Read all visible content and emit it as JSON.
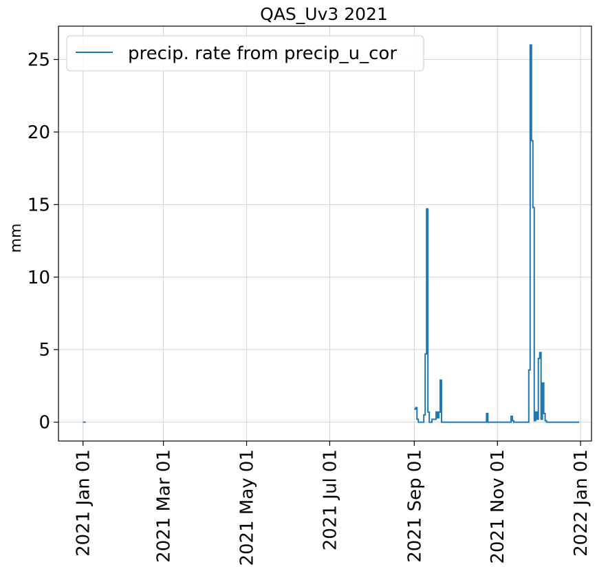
{
  "chart_data": {
    "type": "line",
    "title": "QAS_Uv3 2021",
    "xlabel": "",
    "ylabel": "mm",
    "x_axis": "date",
    "xlim": [
      "2020-12-14",
      "2022-01-09"
    ],
    "ylim": [
      -1.3,
      27.3
    ],
    "grid": true,
    "legend_placement": "top-left",
    "colors": {
      "series": "#1f77b4",
      "grid": "#d3d3d3",
      "axes": "#000000"
    },
    "x_ticks": [
      {
        "date": "2021-01-01",
        "label": "2021 Jan 01"
      },
      {
        "date": "2021-03-01",
        "label": "2021 Mar 01"
      },
      {
        "date": "2021-05-01",
        "label": "2021 May 01"
      },
      {
        "date": "2021-07-01",
        "label": "2021 Jul 01"
      },
      {
        "date": "2021-09-01",
        "label": "2021 Sep 01"
      },
      {
        "date": "2021-11-01",
        "label": "2021 Nov 01"
      },
      {
        "date": "2022-01-01",
        "label": "2022 Jan 01"
      }
    ],
    "y_ticks": [
      0,
      5,
      10,
      15,
      20,
      25
    ],
    "series": [
      {
        "name": "precip. rate from precip_u_cor",
        "step": "post",
        "segments": [
          {
            "x": [
              "2021-01-01",
              "2021-01-03"
            ],
            "y": [
              0,
              0
            ]
          },
          {
            "x": [
              "2021-09-01",
              "2021-09-02",
              "2021-09-03",
              "2021-09-04",
              "2021-09-08",
              "2021-09-09",
              "2021-09-10",
              "2021-09-11",
              "2021-09-12",
              "2021-09-14",
              "2021-09-17",
              "2021-09-18",
              "2021-09-19",
              "2021-09-20",
              "2021-09-21",
              "2021-09-22",
              "2021-10-24",
              "2021-10-25",
              "2021-11-11",
              "2021-11-12",
              "2021-11-13",
              "2021-11-24",
              "2021-11-25",
              "2021-11-26",
              "2021-11-27",
              "2021-11-28",
              "2021-11-29",
              "2021-11-30",
              "2021-12-01",
              "2021-12-02",
              "2021-12-03",
              "2021-12-04",
              "2021-12-05",
              "2021-12-06",
              "2021-12-07",
              "2021-12-31"
            ],
            "y": [
              0.9,
              1.0,
              0.2,
              0,
              0.5,
              4.7,
              14.7,
              0.7,
              0,
              0.2,
              0.7,
              0.3,
              0.7,
              2.9,
              0,
              0,
              0.6,
              0,
              0.4,
              0.1,
              0,
              3.6,
              26.0,
              19.4,
              14.8,
              0.1,
              0.7,
              0.2,
              4.4,
              4.8,
              0.2,
              2.7,
              0.6,
              0.1,
              0,
              0
            ]
          }
        ]
      }
    ]
  }
}
